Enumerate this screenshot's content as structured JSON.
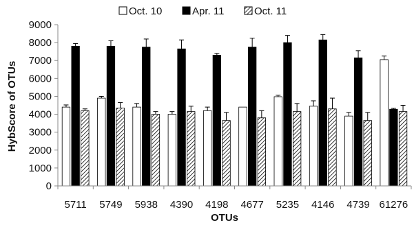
{
  "chart_data": {
    "type": "bar",
    "xlabel": "OTUs",
    "ylabel": "HybScore of OTUs",
    "ylim": [
      0,
      9000
    ],
    "yticks": [
      0,
      1000,
      2000,
      3000,
      4000,
      5000,
      6000,
      7000,
      8000,
      9000
    ],
    "grid": false,
    "legend_position": "top",
    "categories": [
      "5711",
      "5749",
      "5938",
      "4390",
      "4198",
      "4677",
      "5235",
      "4146",
      "4739",
      "61276"
    ],
    "series": [
      {
        "name": "Oct. 10",
        "style": "white",
        "values": [
          4400,
          4900,
          4400,
          4000,
          4200,
          4400,
          4980,
          4450,
          3900,
          7050
        ],
        "errors": [
          120,
          100,
          200,
          150,
          200,
          0,
          80,
          300,
          200,
          200
        ]
      },
      {
        "name": "Apr. 11",
        "style": "black",
        "values": [
          7800,
          7800,
          7750,
          7650,
          7300,
          7750,
          8000,
          8150,
          7150,
          4280
        ],
        "errors": [
          150,
          300,
          450,
          500,
          100,
          500,
          400,
          300,
          400,
          50
        ]
      },
      {
        "name": "Oct. 11",
        "style": "hatched",
        "values": [
          4200,
          4350,
          4000,
          4150,
          3650,
          3800,
          4150,
          4300,
          3650,
          4150
        ],
        "errors": [
          100,
          300,
          150,
          300,
          450,
          400,
          450,
          600,
          450,
          350
        ]
      }
    ]
  }
}
